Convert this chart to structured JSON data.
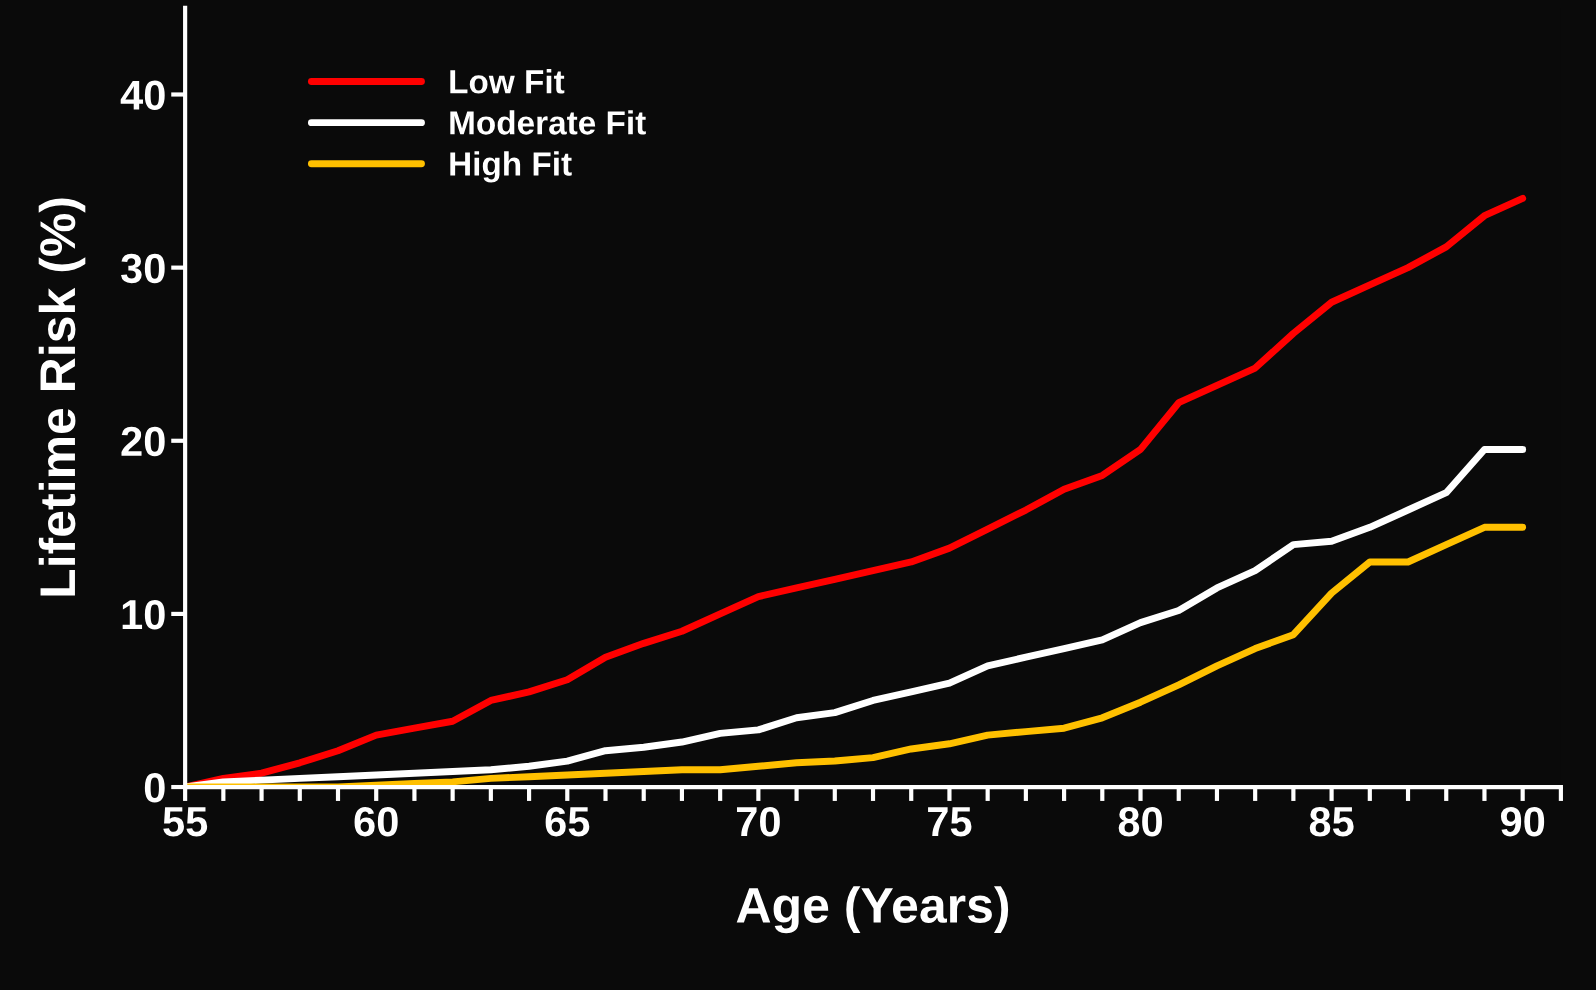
{
  "chart_data": {
    "type": "line",
    "xlabel": "Age (Years)",
    "ylabel": "Lifetime Risk (%)",
    "x": [
      55,
      56,
      57,
      58,
      59,
      60,
      61,
      62,
      63,
      64,
      65,
      66,
      67,
      68,
      69,
      70,
      71,
      72,
      73,
      74,
      75,
      76,
      77,
      78,
      79,
      80,
      81,
      82,
      83,
      84,
      85,
      86,
      87,
      88,
      89,
      90
    ],
    "series": [
      {
        "name": "Low Fit",
        "color": "#ff0000",
        "values": [
          0,
          0.5,
          0.8,
          1.4,
          2.1,
          3.0,
          3.4,
          3.8,
          5.0,
          5.5,
          6.2,
          7.5,
          8.3,
          9.0,
          10.0,
          11.0,
          11.5,
          12.0,
          12.5,
          13.0,
          13.8,
          14.9,
          16.0,
          17.2,
          18.0,
          19.5,
          22.2,
          23.2,
          24.2,
          26.2,
          28.0,
          29.0,
          30.0,
          31.2,
          33.0,
          34.0
        ]
      },
      {
        "name": "Moderate Fit",
        "color": "#ffffff",
        "values": [
          0,
          0.3,
          0.4,
          0.5,
          0.6,
          0.7,
          0.8,
          0.9,
          1.0,
          1.2,
          1.5,
          2.1,
          2.3,
          2.6,
          3.1,
          3.3,
          4.0,
          4.3,
          5.0,
          5.5,
          6.0,
          7.0,
          7.5,
          8.0,
          8.5,
          9.5,
          10.2,
          11.5,
          12.5,
          14.0,
          14.2,
          15.0,
          16.0,
          17.0,
          19.5,
          19.5
        ]
      },
      {
        "name": "High Fit",
        "color": "#ffc000",
        "values": [
          0,
          0,
          0,
          0,
          0,
          0.1,
          0.2,
          0.3,
          0.5,
          0.6,
          0.7,
          0.8,
          0.9,
          1.0,
          1.0,
          1.2,
          1.4,
          1.5,
          1.7,
          2.2,
          2.5,
          3.0,
          3.2,
          3.4,
          4.0,
          4.9,
          5.9,
          7.0,
          8.0,
          8.8,
          11.2,
          13.0,
          13.0,
          14.0,
          15.0,
          15.0
        ]
      }
    ],
    "xlim": [
      55,
      91
    ],
    "ylim": [
      0,
      45
    ],
    "xticks": [
      55,
      {
        "value": 56,
        "label": null
      },
      {
        "value": 57,
        "label": null
      },
      {
        "value": 58,
        "label": null
      },
      {
        "value": 59,
        "label": null
      },
      60,
      {
        "value": 61,
        "label": null
      },
      {
        "value": 62,
        "label": null
      },
      {
        "value": 63,
        "label": null
      },
      {
        "value": 64,
        "label": null
      },
      65,
      {
        "value": 66,
        "label": null
      },
      {
        "value": 67,
        "label": null
      },
      {
        "value": 68,
        "label": null
      },
      {
        "value": 69,
        "label": null
      },
      70,
      {
        "value": 71,
        "label": null
      },
      {
        "value": 72,
        "label": null
      },
      {
        "value": 73,
        "label": null
      },
      {
        "value": 74,
        "label": null
      },
      75,
      {
        "value": 76,
        "label": null
      },
      {
        "value": 77,
        "label": null
      },
      {
        "value": 78,
        "label": null
      },
      {
        "value": 79,
        "label": null
      },
      80,
      {
        "value": 81,
        "label": null
      },
      {
        "value": 82,
        "label": null
      },
      {
        "value": 83,
        "label": null
      },
      {
        "value": 84,
        "label": null
      },
      85,
      {
        "value": 86,
        "label": null
      },
      {
        "value": 87,
        "label": null
      },
      {
        "value": 88,
        "label": null
      },
      {
        "value": 89,
        "label": null
      },
      90,
      {
        "value": 91,
        "label": null
      }
    ],
    "yticks": [
      0,
      10,
      20,
      30,
      40
    ],
    "legend": "top left",
    "grid": false,
    "marker": "none",
    "line_style": "solid"
  }
}
